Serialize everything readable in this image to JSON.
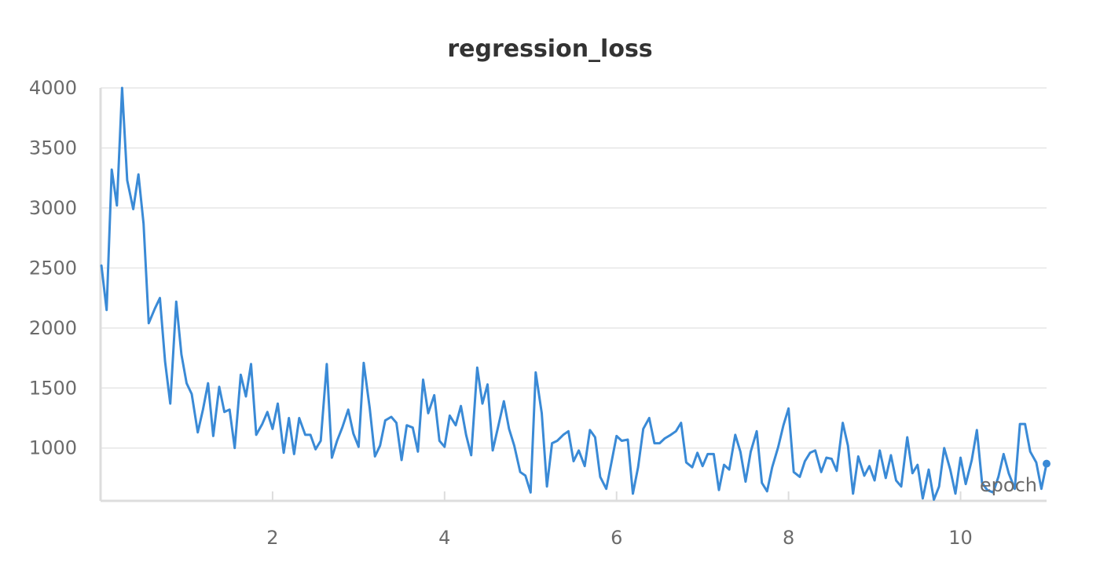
{
  "chart_data": {
    "type": "line",
    "title": "regression_loss",
    "xlabel": "epoch",
    "ylabel": "",
    "xlim": [
      0,
      11
    ],
    "ylim": [
      560,
      4000
    ],
    "x_ticks": [
      2,
      4,
      6,
      8,
      10
    ],
    "y_ticks": [
      1000,
      1500,
      2000,
      2500,
      3000,
      3500,
      4000
    ],
    "grid": true,
    "legend": "none",
    "colors": {
      "line": "#3a8ad6"
    },
    "series": [
      {
        "x": [
          0.01,
          0.07,
          0.13,
          0.19,
          0.25,
          0.31,
          0.38,
          0.44,
          0.5,
          0.56,
          0.63,
          0.69,
          0.75,
          0.81,
          0.88,
          0.94,
          1.0,
          1.06,
          1.13,
          1.19,
          1.25,
          1.31,
          1.38,
          1.44,
          1.5,
          1.56,
          1.63,
          1.69,
          1.75,
          1.81,
          1.88,
          1.94,
          2.0,
          2.06,
          2.13,
          2.19,
          2.25,
          2.31,
          2.38,
          2.44,
          2.5,
          2.56,
          2.63,
          2.69,
          2.75,
          2.81,
          2.88,
          2.94,
          3.0,
          3.06,
          3.13,
          3.19,
          3.25,
          3.31,
          3.38,
          3.44,
          3.5,
          3.56,
          3.63,
          3.69,
          3.75,
          3.81,
          3.88,
          3.94,
          4.0,
          4.06,
          4.13,
          4.19,
          4.25,
          4.31,
          4.38,
          4.44,
          4.5,
          4.56,
          4.63,
          4.69,
          4.75,
          4.81,
          4.88,
          4.94,
          5.0,
          5.06,
          5.13,
          5.19,
          5.25,
          5.31,
          5.38,
          5.44,
          5.5,
          5.56,
          5.63,
          5.69,
          5.75,
          5.81,
          5.88,
          5.94,
          6.0,
          6.06,
          6.13,
          6.19,
          6.25,
          6.31,
          6.38,
          6.44,
          6.5,
          6.56,
          6.63,
          6.69,
          6.75,
          6.81,
          6.88,
          6.94,
          7.0,
          7.06,
          7.13,
          7.19,
          7.25,
          7.31,
          7.38,
          7.44,
          7.5,
          7.56,
          7.63,
          7.69,
          7.75,
          7.81,
          7.88,
          7.94,
          8.0,
          8.06,
          8.13,
          8.19,
          8.25,
          8.31,
          8.38,
          8.44,
          8.5,
          8.56,
          8.63,
          8.69,
          8.75,
          8.81,
          8.88,
          8.94,
          9.0,
          9.06,
          9.13,
          9.19,
          9.25,
          9.31,
          9.38,
          9.44,
          9.5,
          9.56,
          9.63,
          9.69,
          9.75,
          9.81,
          9.88,
          9.94,
          10.0,
          10.06,
          10.13,
          10.19,
          10.25,
          10.31,
          10.38,
          10.44,
          10.5,
          10.56,
          10.63,
          10.69,
          10.75,
          10.81,
          10.88,
          10.94,
          11.0
        ],
        "y": [
          2520,
          2150,
          3320,
          3020,
          4000,
          3230,
          2990,
          3280,
          2870,
          2040,
          2160,
          2250,
          1720,
          1370,
          2220,
          1780,
          1540,
          1450,
          1130,
          1320,
          1540,
          1100,
          1510,
          1300,
          1320,
          1000,
          1610,
          1430,
          1700,
          1110,
          1200,
          1300,
          1160,
          1370,
          960,
          1250,
          950,
          1250,
          1110,
          1110,
          990,
          1060,
          1700,
          920,
          1060,
          1170,
          1320,
          1120,
          1010,
          1710,
          1330,
          930,
          1020,
          1230,
          1260,
          1210,
          900,
          1190,
          1170,
          970,
          1570,
          1290,
          1440,
          1060,
          1010,
          1270,
          1190,
          1350,
          1110,
          940,
          1670,
          1370,
          1530,
          980,
          1200,
          1390,
          1160,
          1020,
          800,
          770,
          630,
          1630,
          1290,
          680,
          1040,
          1060,
          1110,
          1140,
          890,
          980,
          850,
          1150,
          1090,
          760,
          660,
          880,
          1100,
          1060,
          1070,
          620,
          840,
          1160,
          1250,
          1040,
          1040,
          1080,
          1110,
          1140,
          1210,
          880,
          840,
          960,
          850,
          950,
          950,
          650,
          860,
          820,
          1110,
          970,
          720,
          970,
          1140,
          710,
          640,
          840,
          1010,
          1190,
          1330,
          800,
          760,
          890,
          960,
          980,
          800,
          920,
          910,
          810,
          1210,
          1020,
          620,
          930,
          770,
          850,
          730,
          980,
          750,
          940,
          730,
          680,
          1090,
          790,
          860,
          580,
          820,
          570,
          680,
          1000,
          820,
          620,
          920,
          700,
          900,
          1150,
          710,
          650,
          630,
          760,
          950,
          790,
          660,
          1200,
          1200,
          970,
          880,
          660,
          870
        ]
      }
    ]
  }
}
